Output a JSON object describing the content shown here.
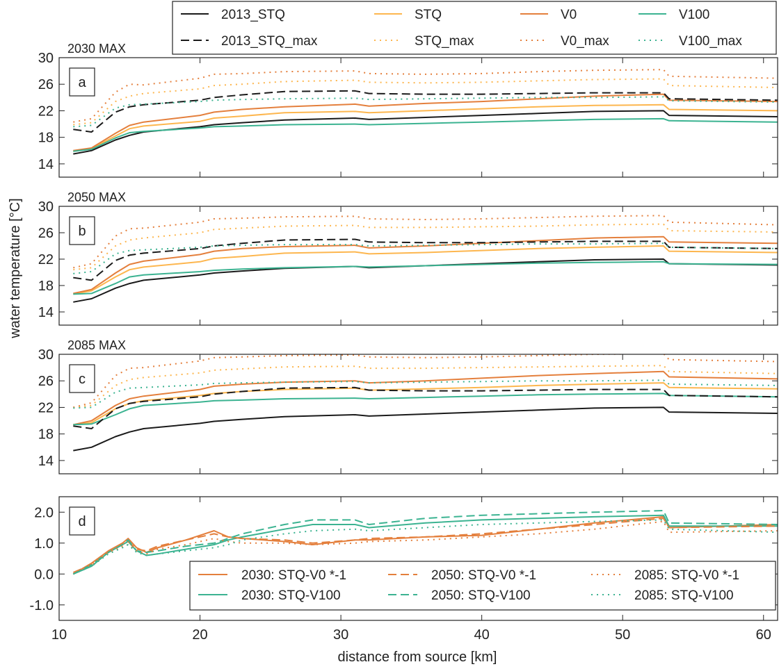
{
  "figure": {
    "ylabel": "water temperature [°C]",
    "xlabel": "distance from source [km]"
  },
  "legend_top": {
    "entries": [
      {
        "label": "2013_STQ",
        "color": "#1a1a1a",
        "style": "solid"
      },
      {
        "label": "STQ",
        "color": "#fdb64e",
        "style": "solid"
      },
      {
        "label": "V0",
        "color": "#e47f3c",
        "style": "solid"
      },
      {
        "label": "V100",
        "color": "#3bb391",
        "style": "solid"
      },
      {
        "label": "2013_STQ_max",
        "color": "#1a1a1a",
        "style": "dashed"
      },
      {
        "label": "STQ_max",
        "color": "#fdb64e",
        "style": "dotted"
      },
      {
        "label": "V0_max",
        "color": "#e47f3c",
        "style": "dotted"
      },
      {
        "label": "V100_max",
        "color": "#3bb391",
        "style": "dotted"
      }
    ]
  },
  "legend_d": {
    "entries": [
      {
        "label": "2030: STQ-V0 *-1",
        "color": "#e47f3c",
        "style": "solid"
      },
      {
        "label": "2050: STQ-V0 *-1",
        "color": "#e47f3c",
        "style": "dashed"
      },
      {
        "label": "2085: STQ-V0 *-1",
        "color": "#e47f3c",
        "style": "dotted"
      },
      {
        "label": "2030: STQ-V100",
        "color": "#3bb391",
        "style": "solid"
      },
      {
        "label": "2050: STQ-V100",
        "color": "#3bb391",
        "style": "dashed"
      },
      {
        "label": "2085: STQ-V100",
        "color": "#3bb391",
        "style": "dotted"
      }
    ]
  },
  "chart_data": [
    {
      "type": "line",
      "panel": "a",
      "title": "2030 MAX",
      "xlim": [
        10,
        61
      ],
      "ylim": [
        12,
        30
      ],
      "yticks": [
        14,
        18,
        22,
        26,
        30
      ],
      "xticks": [
        10,
        20,
        30,
        40,
        50,
        60
      ],
      "grid": false,
      "x": [
        11,
        12.3,
        14,
        15,
        16,
        20,
        21,
        23,
        26,
        31,
        32,
        36,
        40,
        44,
        48,
        52.9,
        53.3,
        61
      ],
      "series": [
        {
          "name": "2013_STQ",
          "color": "#1a1a1a",
          "style": "solid",
          "values": [
            15.5,
            16.0,
            17.6,
            18.3,
            18.8,
            19.6,
            19.9,
            20.2,
            20.6,
            20.9,
            20.7,
            21.0,
            21.3,
            21.6,
            21.9,
            22.0,
            21.3,
            21.1
          ]
        },
        {
          "name": "STQ",
          "color": "#fdb64e",
          "style": "solid",
          "values": [
            15.9,
            16.3,
            18.2,
            19.3,
            19.7,
            20.4,
            20.9,
            21.2,
            21.7,
            21.9,
            21.7,
            22.0,
            22.3,
            22.6,
            22.8,
            22.9,
            22.2,
            22.0
          ]
        },
        {
          "name": "V0",
          "color": "#e47f3c",
          "style": "solid",
          "values": [
            16.0,
            16.4,
            18.6,
            19.8,
            20.3,
            21.3,
            21.8,
            22.2,
            22.6,
            23.0,
            22.7,
            23.1,
            23.4,
            23.8,
            24.2,
            24.5,
            23.6,
            23.4
          ]
        },
        {
          "name": "V100",
          "color": "#3bb391",
          "style": "solid",
          "values": [
            15.9,
            16.2,
            17.9,
            18.7,
            18.9,
            19.4,
            19.6,
            19.7,
            19.9,
            20.0,
            19.9,
            20.1,
            20.3,
            20.5,
            20.7,
            20.8,
            20.5,
            20.3
          ]
        },
        {
          "name": "2013_STQ_max",
          "color": "#1a1a1a",
          "style": "dashed",
          "values": [
            19.2,
            18.8,
            21.8,
            22.6,
            22.9,
            23.6,
            24.0,
            24.4,
            24.9,
            25.0,
            24.6,
            24.5,
            24.5,
            24.6,
            24.7,
            24.7,
            23.8,
            23.6
          ]
        },
        {
          "name": "STQ_max",
          "color": "#fdb64e",
          "style": "dotted",
          "values": [
            19.9,
            20.2,
            23.4,
            24.2,
            24.6,
            25.3,
            25.8,
            26.0,
            26.4,
            26.6,
            26.3,
            26.2,
            26.3,
            26.5,
            26.7,
            26.8,
            25.8,
            25.5
          ]
        },
        {
          "name": "V0_max",
          "color": "#e47f3c",
          "style": "dotted",
          "values": [
            20.3,
            20.8,
            24.8,
            26.0,
            25.9,
            26.9,
            27.5,
            27.6,
            27.9,
            28.0,
            27.6,
            27.5,
            27.6,
            27.9,
            28.1,
            28.2,
            27.2,
            26.9
          ]
        },
        {
          "name": "V100_max",
          "color": "#3bb391",
          "style": "dotted",
          "values": [
            19.6,
            19.8,
            22.4,
            22.9,
            23.0,
            23.4,
            23.6,
            23.7,
            23.8,
            23.9,
            23.7,
            23.8,
            23.9,
            24.0,
            24.0,
            24.1,
            23.5,
            23.3
          ]
        }
      ]
    },
    {
      "type": "line",
      "panel": "b",
      "title": "2050 MAX",
      "xlim": [
        10,
        61
      ],
      "ylim": [
        12,
        30
      ],
      "yticks": [
        14,
        18,
        22,
        26,
        30
      ],
      "xticks": [
        10,
        20,
        30,
        40,
        50,
        60
      ],
      "grid": false,
      "x": [
        11,
        12.3,
        14,
        15,
        16,
        20,
        21,
        23,
        26,
        31,
        32,
        36,
        40,
        44,
        48,
        52.9,
        53.3,
        61
      ],
      "series": [
        {
          "name": "2013_STQ",
          "color": "#1a1a1a",
          "style": "solid",
          "values": [
            15.5,
            16.0,
            17.6,
            18.3,
            18.8,
            19.6,
            19.9,
            20.2,
            20.6,
            20.9,
            20.7,
            21.0,
            21.3,
            21.6,
            21.9,
            22.0,
            21.3,
            21.1
          ]
        },
        {
          "name": "STQ",
          "color": "#fdb64e",
          "style": "solid",
          "values": [
            16.7,
            17.2,
            19.3,
            20.4,
            20.8,
            21.6,
            22.1,
            22.4,
            22.9,
            23.1,
            22.8,
            23.0,
            23.3,
            23.6,
            23.8,
            24.0,
            23.2,
            23.0
          ]
        },
        {
          "name": "V0",
          "color": "#e47f3c",
          "style": "solid",
          "values": [
            16.8,
            17.4,
            19.9,
            21.2,
            21.7,
            22.7,
            23.2,
            23.6,
            23.9,
            24.1,
            23.7,
            24.0,
            24.4,
            24.8,
            25.2,
            25.4,
            24.6,
            24.4
          ]
        },
        {
          "name": "V100",
          "color": "#3bb391",
          "style": "solid",
          "values": [
            16.7,
            16.8,
            18.3,
            19.3,
            19.6,
            20.1,
            20.3,
            20.5,
            20.7,
            20.9,
            20.8,
            21.0,
            21.2,
            21.4,
            21.5,
            21.6,
            21.3,
            21.2
          ]
        },
        {
          "name": "2013_STQ_max",
          "color": "#1a1a1a",
          "style": "dashed",
          "values": [
            19.2,
            18.8,
            21.8,
            22.6,
            22.9,
            23.6,
            24.0,
            24.4,
            24.9,
            25.0,
            24.6,
            24.5,
            24.5,
            24.6,
            24.7,
            24.7,
            23.8,
            23.6
          ]
        },
        {
          "name": "STQ_max",
          "color": "#fdb64e",
          "style": "dotted",
          "values": [
            20.4,
            20.7,
            24.0,
            24.9,
            25.2,
            26.0,
            26.5,
            26.7,
            27.0,
            27.1,
            26.8,
            26.8,
            26.9,
            27.0,
            27.2,
            27.3,
            26.3,
            26.1
          ]
        },
        {
          "name": "V0_max",
          "color": "#e47f3c",
          "style": "dotted",
          "values": [
            20.7,
            21.3,
            25.5,
            26.6,
            26.7,
            27.6,
            28.1,
            28.2,
            28.4,
            28.5,
            28.1,
            28.0,
            28.1,
            28.3,
            28.5,
            28.6,
            27.6,
            27.2
          ]
        },
        {
          "name": "V100_max",
          "color": "#3bb391",
          "style": "dotted",
          "values": [
            19.8,
            20.1,
            22.8,
            23.3,
            23.4,
            23.8,
            24.0,
            24.1,
            24.2,
            24.2,
            24.0,
            24.1,
            24.2,
            24.3,
            24.3,
            24.4,
            23.8,
            23.6
          ]
        }
      ]
    },
    {
      "type": "line",
      "panel": "c",
      "title": "2085 MAX",
      "xlim": [
        10,
        61
      ],
      "ylim": [
        12,
        30
      ],
      "yticks": [
        14,
        18,
        22,
        26,
        30
      ],
      "xticks": [
        10,
        20,
        30,
        40,
        50,
        60
      ],
      "grid": false,
      "x": [
        11,
        12.3,
        14,
        15,
        16,
        20,
        21,
        23,
        26,
        31,
        32,
        36,
        40,
        44,
        48,
        52.9,
        53.3,
        61
      ],
      "series": [
        {
          "name": "2013_STQ",
          "color": "#1a1a1a",
          "style": "solid",
          "values": [
            15.5,
            16.0,
            17.6,
            18.3,
            18.8,
            19.6,
            19.9,
            20.2,
            20.6,
            20.9,
            20.7,
            21.0,
            21.3,
            21.6,
            21.9,
            22.0,
            21.3,
            21.1
          ]
        },
        {
          "name": "STQ",
          "color": "#fdb64e",
          "style": "solid",
          "values": [
            19.4,
            19.7,
            21.8,
            22.6,
            23.0,
            23.8,
            24.1,
            24.4,
            24.7,
            24.9,
            24.6,
            24.8,
            25.0,
            25.3,
            25.5,
            25.7,
            25.0,
            24.8
          ]
        },
        {
          "name": "V0",
          "color": "#e47f3c",
          "style": "solid",
          "values": [
            19.4,
            20.0,
            22.3,
            23.3,
            23.7,
            24.7,
            25.2,
            25.5,
            25.8,
            26.0,
            25.7,
            26.0,
            26.4,
            26.8,
            27.1,
            27.4,
            26.6,
            26.3
          ]
        },
        {
          "name": "V100",
          "color": "#3bb391",
          "style": "solid",
          "values": [
            19.4,
            19.5,
            20.9,
            21.8,
            22.3,
            22.8,
            23.0,
            23.1,
            23.3,
            23.4,
            23.3,
            23.5,
            23.7,
            23.9,
            24.0,
            24.1,
            23.8,
            23.6
          ]
        },
        {
          "name": "2013_STQ_max",
          "color": "#1a1a1a",
          "style": "dashed",
          "values": [
            19.2,
            18.8,
            21.8,
            22.6,
            22.9,
            23.6,
            24.0,
            24.4,
            24.9,
            25.0,
            24.6,
            24.5,
            24.5,
            24.6,
            24.7,
            24.7,
            23.8,
            23.6
          ]
        },
        {
          "name": "STQ_max",
          "color": "#fdb64e",
          "style": "dotted",
          "values": [
            22.0,
            22.3,
            25.3,
            26.2,
            26.5,
            27.2,
            27.6,
            27.8,
            28.1,
            28.2,
            27.9,
            27.9,
            28.0,
            28.1,
            28.2,
            28.3,
            27.4,
            27.1
          ]
        },
        {
          "name": "V0_max",
          "color": "#e47f3c",
          "style": "dotted",
          "values": [
            22.0,
            22.7,
            26.8,
            27.9,
            28.0,
            29.0,
            29.5,
            29.6,
            29.8,
            29.9,
            29.6,
            29.5,
            29.6,
            29.8,
            30.0,
            30.1,
            29.2,
            28.9
          ]
        },
        {
          "name": "V100_max",
          "color": "#3bb391",
          "style": "dotted",
          "values": [
            21.9,
            22.0,
            24.3,
            24.9,
            25.0,
            25.4,
            25.6,
            25.7,
            25.8,
            25.9,
            25.7,
            25.8,
            25.9,
            26.0,
            26.0,
            26.1,
            25.5,
            25.3
          ]
        }
      ]
    },
    {
      "type": "line",
      "panel": "d",
      "xlim": [
        10,
        61
      ],
      "ylim": [
        -1.5,
        2.5
      ],
      "yticks": [
        -1.0,
        0.0,
        1.0,
        2.0
      ],
      "xticks": [
        10,
        20,
        30,
        40,
        50,
        60
      ],
      "grid": false,
      "x": [
        11,
        12.3,
        13.5,
        14.5,
        14.9,
        15.5,
        16.2,
        17,
        19,
        21,
        22,
        23,
        26,
        28,
        31,
        32,
        36,
        40,
        44,
        48,
        52.9,
        53.3,
        61
      ],
      "series": [
        {
          "name": "2030: STQ-V0 *-1",
          "color": "#e47f3c",
          "style": "solid",
          "values": [
            0.0,
            0.35,
            0.75,
            1.0,
            1.15,
            0.85,
            0.7,
            0.85,
            1.1,
            1.4,
            1.2,
            1.15,
            1.05,
            0.95,
            1.1,
            1.1,
            1.2,
            1.25,
            1.45,
            1.65,
            1.85,
            1.5,
            1.6
          ]
        },
        {
          "name": "2030: STQ-V100",
          "color": "#3bb391",
          "style": "solid",
          "values": [
            0.0,
            0.25,
            0.7,
            0.95,
            1.05,
            0.75,
            0.6,
            0.65,
            0.8,
            0.95,
            1.1,
            1.2,
            1.45,
            1.6,
            1.6,
            1.5,
            1.65,
            1.75,
            1.8,
            1.85,
            1.9,
            1.55,
            1.55
          ]
        },
        {
          "name": "2050: STQ-V0 *-1",
          "color": "#e47f3c",
          "style": "dashed",
          "values": [
            0.05,
            0.3,
            0.7,
            0.95,
            1.05,
            0.8,
            0.75,
            0.9,
            1.1,
            1.3,
            1.2,
            1.15,
            1.1,
            1.0,
            1.1,
            1.15,
            1.2,
            1.3,
            1.45,
            1.6,
            1.8,
            1.5,
            1.55
          ]
        },
        {
          "name": "2050: STQ-V100",
          "color": "#3bb391",
          "style": "dashed",
          "values": [
            0.0,
            0.3,
            0.7,
            0.95,
            1.1,
            0.75,
            0.7,
            0.75,
            0.9,
            1.0,
            1.15,
            1.3,
            1.6,
            1.75,
            1.75,
            1.6,
            1.8,
            1.9,
            1.95,
            2.0,
            2.05,
            1.65,
            1.6
          ]
        },
        {
          "name": "2085: STQ-V0 *-1",
          "color": "#e47f3c",
          "style": "dotted",
          "values": [
            0.0,
            0.3,
            0.7,
            0.9,
            0.95,
            0.75,
            0.65,
            0.8,
            0.95,
            1.15,
            1.05,
            1.0,
            1.0,
            0.95,
            1.0,
            1.05,
            1.1,
            1.2,
            1.3,
            1.45,
            1.7,
            1.35,
            1.4
          ]
        },
        {
          "name": "2085: STQ-V100",
          "color": "#3bb391",
          "style": "dotted",
          "values": [
            0.0,
            0.25,
            0.65,
            0.85,
            0.95,
            0.7,
            0.6,
            0.65,
            0.75,
            0.85,
            0.95,
            1.1,
            1.3,
            1.4,
            1.45,
            1.4,
            1.5,
            1.6,
            1.65,
            1.7,
            1.75,
            1.45,
            1.35
          ]
        }
      ]
    }
  ]
}
